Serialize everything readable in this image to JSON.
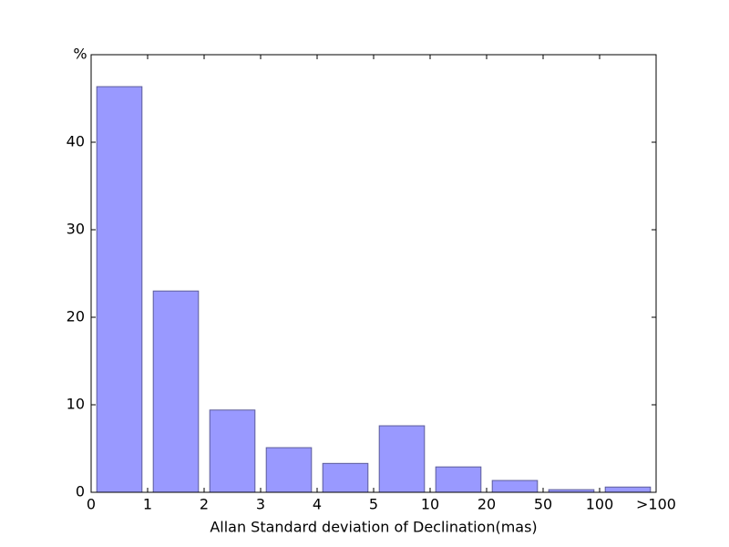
{
  "chart_data": {
    "type": "bar",
    "xlabel": "Allan Standard deviation of Declination(mas)",
    "ylabel": "%",
    "bin_labels": [
      "0",
      "1",
      "2",
      "3",
      "4",
      "5",
      "10",
      "20",
      "50",
      "100",
      ">100"
    ],
    "values": [
      46.35,
      23.0,
      9.4,
      5.1,
      3.3,
      7.6,
      2.9,
      1.35,
      0.3,
      0.6
    ],
    "color": "#9999ff",
    "edgecolor": "#5c5c99",
    "ylim": [
      0,
      50
    ],
    "yticks": [
      0,
      10,
      20,
      30,
      40
    ]
  }
}
